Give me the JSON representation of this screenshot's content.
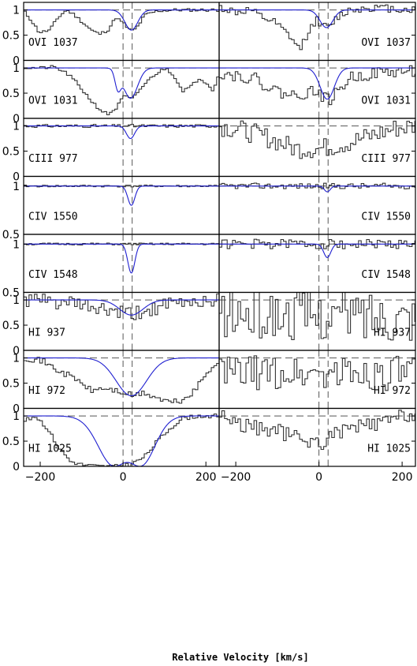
{
  "chart_data": {
    "type": "line",
    "xlabel": "Relative Velocity [km/s]",
    "xlim": [
      -240,
      232
    ],
    "xticks": [
      -200,
      0,
      200
    ],
    "reference_velocities": [
      0,
      22
    ],
    "columns": [
      "left",
      "right"
    ],
    "line_color": "#333333",
    "model_color": "#1f1fd0",
    "panels": [
      {
        "label": "OVI  1037",
        "ylim": [
          0,
          1.15
        ],
        "yticks": [
          "1",
          "0.5",
          "0"
        ],
        "left": {
          "model": [
            {
              "depth": 0.4,
              "center": 20,
              "b": 22
            }
          ],
          "data_profile": [
            [
              -240,
              0.95
            ],
            [
              -225,
              0.8
            ],
            [
              -205,
              0.55
            ],
            [
              -180,
              0.6
            ],
            [
              -160,
              0.85
            ],
            [
              -140,
              1.0
            ],
            [
              -120,
              0.9
            ],
            [
              -100,
              0.75
            ],
            [
              -80,
              0.6
            ],
            [
              -60,
              0.52
            ],
            [
              -40,
              0.6
            ],
            [
              -20,
              0.85
            ],
            [
              0,
              0.72
            ],
            [
              10,
              0.62
            ],
            [
              20,
              0.58
            ],
            [
              30,
              0.65
            ],
            [
              50,
              0.9
            ],
            [
              80,
              0.98
            ],
            [
              120,
              1.0
            ],
            [
              232,
              1.0
            ]
          ],
          "noise": 0.03,
          "seed": 11
        },
        "right": {
          "model": [
            {
              "depth": 0.35,
              "center": 18,
              "b": 22
            }
          ],
          "data_profile": [
            [
              -240,
              1.05
            ],
            [
              -200,
              0.95
            ],
            [
              -170,
              1.0
            ],
            [
              -140,
              0.85
            ],
            [
              -110,
              0.75
            ],
            [
              -90,
              0.6
            ],
            [
              -70,
              0.45
            ],
            [
              -50,
              0.2
            ],
            [
              -30,
              0.55
            ],
            [
              -10,
              0.8
            ],
            [
              0,
              0.75
            ],
            [
              20,
              0.62
            ],
            [
              40,
              0.85
            ],
            [
              70,
              1.0
            ],
            [
              120,
              1.05
            ],
            [
              232,
              1.0
            ]
          ],
          "noise": 0.08,
          "seed": 12
        }
      },
      {
        "label": "OVI  1031",
        "ylim": [
          0,
          1.15
        ],
        "yticks": [
          "1",
          "0.5",
          "0"
        ],
        "left": {
          "model": [
            {
              "depth": 0.4,
              "center": -12,
              "b": 10
            },
            {
              "depth": 0.6,
              "center": 18,
              "b": 24
            }
          ],
          "data_profile": [
            [
              -240,
              1.0
            ],
            [
              -200,
              1.0
            ],
            [
              -170,
              1.02
            ],
            [
              -140,
              0.9
            ],
            [
              -120,
              0.75
            ],
            [
              -100,
              0.55
            ],
            [
              -80,
              0.35
            ],
            [
              -60,
              0.18
            ],
            [
              -40,
              0.08
            ],
            [
              -20,
              0.2
            ],
            [
              0,
              0.45
            ],
            [
              10,
              0.4
            ],
            [
              20,
              0.38
            ],
            [
              40,
              0.6
            ],
            [
              70,
              0.85
            ],
            [
              100,
              1.0
            ],
            [
              120,
              0.85
            ],
            [
              140,
              0.55
            ],
            [
              160,
              0.62
            ],
            [
              180,
              0.8
            ],
            [
              200,
              0.7
            ],
            [
              215,
              0.55
            ],
            [
              232,
              1.0
            ]
          ],
          "noise": 0.03,
          "seed": 21
        },
        "right": {
          "model": [
            {
              "depth": 0.62,
              "center": 20,
              "b": 24
            }
          ],
          "data_profile": [
            [
              -240,
              0.9
            ],
            [
              -200,
              0.85
            ],
            [
              -160,
              0.8
            ],
            [
              -120,
              0.6
            ],
            [
              -90,
              0.5
            ],
            [
              -60,
              0.45
            ],
            [
              -40,
              0.5
            ],
            [
              -10,
              0.55
            ],
            [
              20,
              0.35
            ],
            [
              40,
              0.5
            ],
            [
              70,
              0.8
            ],
            [
              100,
              0.85
            ],
            [
              140,
              0.9
            ],
            [
              232,
              0.95
            ]
          ],
          "noise": 0.12,
          "seed": 22
        }
      },
      {
        "label": "CIII  977",
        "ylim": [
          0,
          1.15
        ],
        "yticks": [
          "1",
          "0.5",
          "0"
        ],
        "left": {
          "model": [
            {
              "depth": 0.25,
              "center": 18,
              "b": 14
            }
          ],
          "data_profile": [
            [
              -240,
              1.0
            ],
            [
              232,
              1.0
            ]
          ],
          "noise": 0.03,
          "seed": 31
        },
        "right": {
          "model": [],
          "data_profile": [
            [
              -240,
              1.0
            ],
            [
              -180,
              0.9
            ],
            [
              -120,
              0.75
            ],
            [
              -60,
              0.55
            ],
            [
              0,
              0.55
            ],
            [
              60,
              0.65
            ],
            [
              120,
              0.8
            ],
            [
              180,
              0.95
            ],
            [
              232,
              1.0
            ]
          ],
          "noise": 0.2,
          "seed": 32
        }
      },
      {
        "label": "CIV  1550",
        "ylim": [
          0.5,
          1.1
        ],
        "yticks": [
          "1",
          "0.5"
        ],
        "left": {
          "model": [
            {
              "depth": 0.2,
              "center": 20,
              "b": 12
            }
          ],
          "data_profile": [
            [
              -240,
              1.0
            ],
            [
              232,
              1.0
            ]
          ],
          "noise": 0.01,
          "seed": 41
        },
        "right": {
          "model": [
            {
              "depth": 0.06,
              "center": 20,
              "b": 10
            }
          ],
          "data_profile": [
            [
              -240,
              1.0
            ],
            [
              232,
              1.0
            ]
          ],
          "noise": 0.03,
          "seed": 42
        }
      },
      {
        "label": "CIV  1548",
        "ylim": [
          0.5,
          1.1
        ],
        "yticks": [
          "1",
          "0.5"
        ],
        "left": {
          "model": [
            {
              "depth": 0.3,
              "center": 20,
              "b": 12
            }
          ],
          "data_profile": [
            [
              -240,
              1.0
            ],
            [
              232,
              1.0
            ]
          ],
          "noise": 0.01,
          "seed": 51
        },
        "right": {
          "model": [
            {
              "depth": 0.14,
              "center": 20,
              "b": 12
            }
          ],
          "data_profile": [
            [
              -240,
              1.0
            ],
            [
              232,
              1.0
            ]
          ],
          "noise": 0.05,
          "seed": 52
        }
      },
      {
        "label": "HI  937",
        "ylim": [
          0,
          1.15
        ],
        "yticks": [
          "1",
          "0.5",
          "0"
        ],
        "left": {
          "model": [
            {
              "depth": 0.3,
              "center": 20,
              "b": 40
            }
          ],
          "data_profile": [
            [
              -240,
              1.0
            ],
            [
              -150,
              0.95
            ],
            [
              -80,
              0.85
            ],
            [
              -20,
              0.75
            ],
            [
              20,
              0.7
            ],
            [
              80,
              0.85
            ],
            [
              150,
              0.95
            ],
            [
              232,
              1.0
            ]
          ],
          "noise": 0.15,
          "seed": 61
        },
        "right": {
          "model": [],
          "data_profile": [
            [
              -240,
              0.7
            ],
            [
              232,
              0.7
            ]
          ],
          "noise": 0.5,
          "seed": 62
        }
      },
      {
        "label": "HI  972",
        "ylim": [
          0,
          1.15
        ],
        "yticks": [
          "1",
          "0.5",
          "0"
        ],
        "left": {
          "model": [
            {
              "depth": 0.75,
              "center": 20,
              "b": 52
            }
          ],
          "data_profile": [
            [
              -240,
              1.0
            ],
            [
              -200,
              0.95
            ],
            [
              -160,
              0.75
            ],
            [
              -120,
              0.6
            ],
            [
              -80,
              0.35
            ],
            [
              -50,
              0.4
            ],
            [
              -20,
              0.35
            ],
            [
              0,
              0.3
            ],
            [
              20,
              0.25
            ],
            [
              50,
              0.3
            ],
            [
              80,
              0.2
            ],
            [
              110,
              0.12
            ],
            [
              140,
              0.15
            ],
            [
              170,
              0.35
            ],
            [
              200,
              0.7
            ],
            [
              232,
              1.0
            ]
          ],
          "noise": 0.06,
          "seed": 71
        },
        "right": {
          "model": [],
          "data_profile": [
            [
              -240,
              0.7
            ],
            [
              232,
              0.7
            ]
          ],
          "noise": 0.35,
          "seed": 72
        }
      },
      {
        "label": "HI  1025",
        "ylim": [
          0,
          1.15
        ],
        "yticks": [
          "1",
          "0.5",
          "0"
        ],
        "left": {
          "model": [
            {
              "depth": 1.0,
              "center": -20,
              "b": 55
            },
            {
              "depth": 1.0,
              "center": 40,
              "b": 50
            }
          ],
          "data_profile": [
            [
              -240,
              0.9
            ],
            [
              -215,
              1.0
            ],
            [
              -190,
              0.8
            ],
            [
              -160,
              0.4
            ],
            [
              -130,
              0.1
            ],
            [
              -100,
              0.03
            ],
            [
              -60,
              0.0
            ],
            [
              -20,
              0.0
            ],
            [
              0,
              0.02
            ],
            [
              20,
              0.05
            ],
            [
              50,
              0.2
            ],
            [
              80,
              0.5
            ],
            [
              110,
              0.75
            ],
            [
              140,
              0.95
            ],
            [
              180,
              1.0
            ],
            [
              232,
              1.0
            ]
          ],
          "noise": 0.04,
          "seed": 81
        },
        "right": {
          "model": [],
          "data_profile": [
            [
              -240,
              1.05
            ],
            [
              -200,
              0.85
            ],
            [
              -150,
              0.75
            ],
            [
              -100,
              0.7
            ],
            [
              -50,
              0.55
            ],
            [
              0,
              0.45
            ],
            [
              50,
              0.7
            ],
            [
              100,
              0.8
            ],
            [
              150,
              0.85
            ],
            [
              200,
              1.0
            ],
            [
              232,
              1.05
            ]
          ],
          "noise": 0.15,
          "seed": 82
        }
      }
    ]
  }
}
